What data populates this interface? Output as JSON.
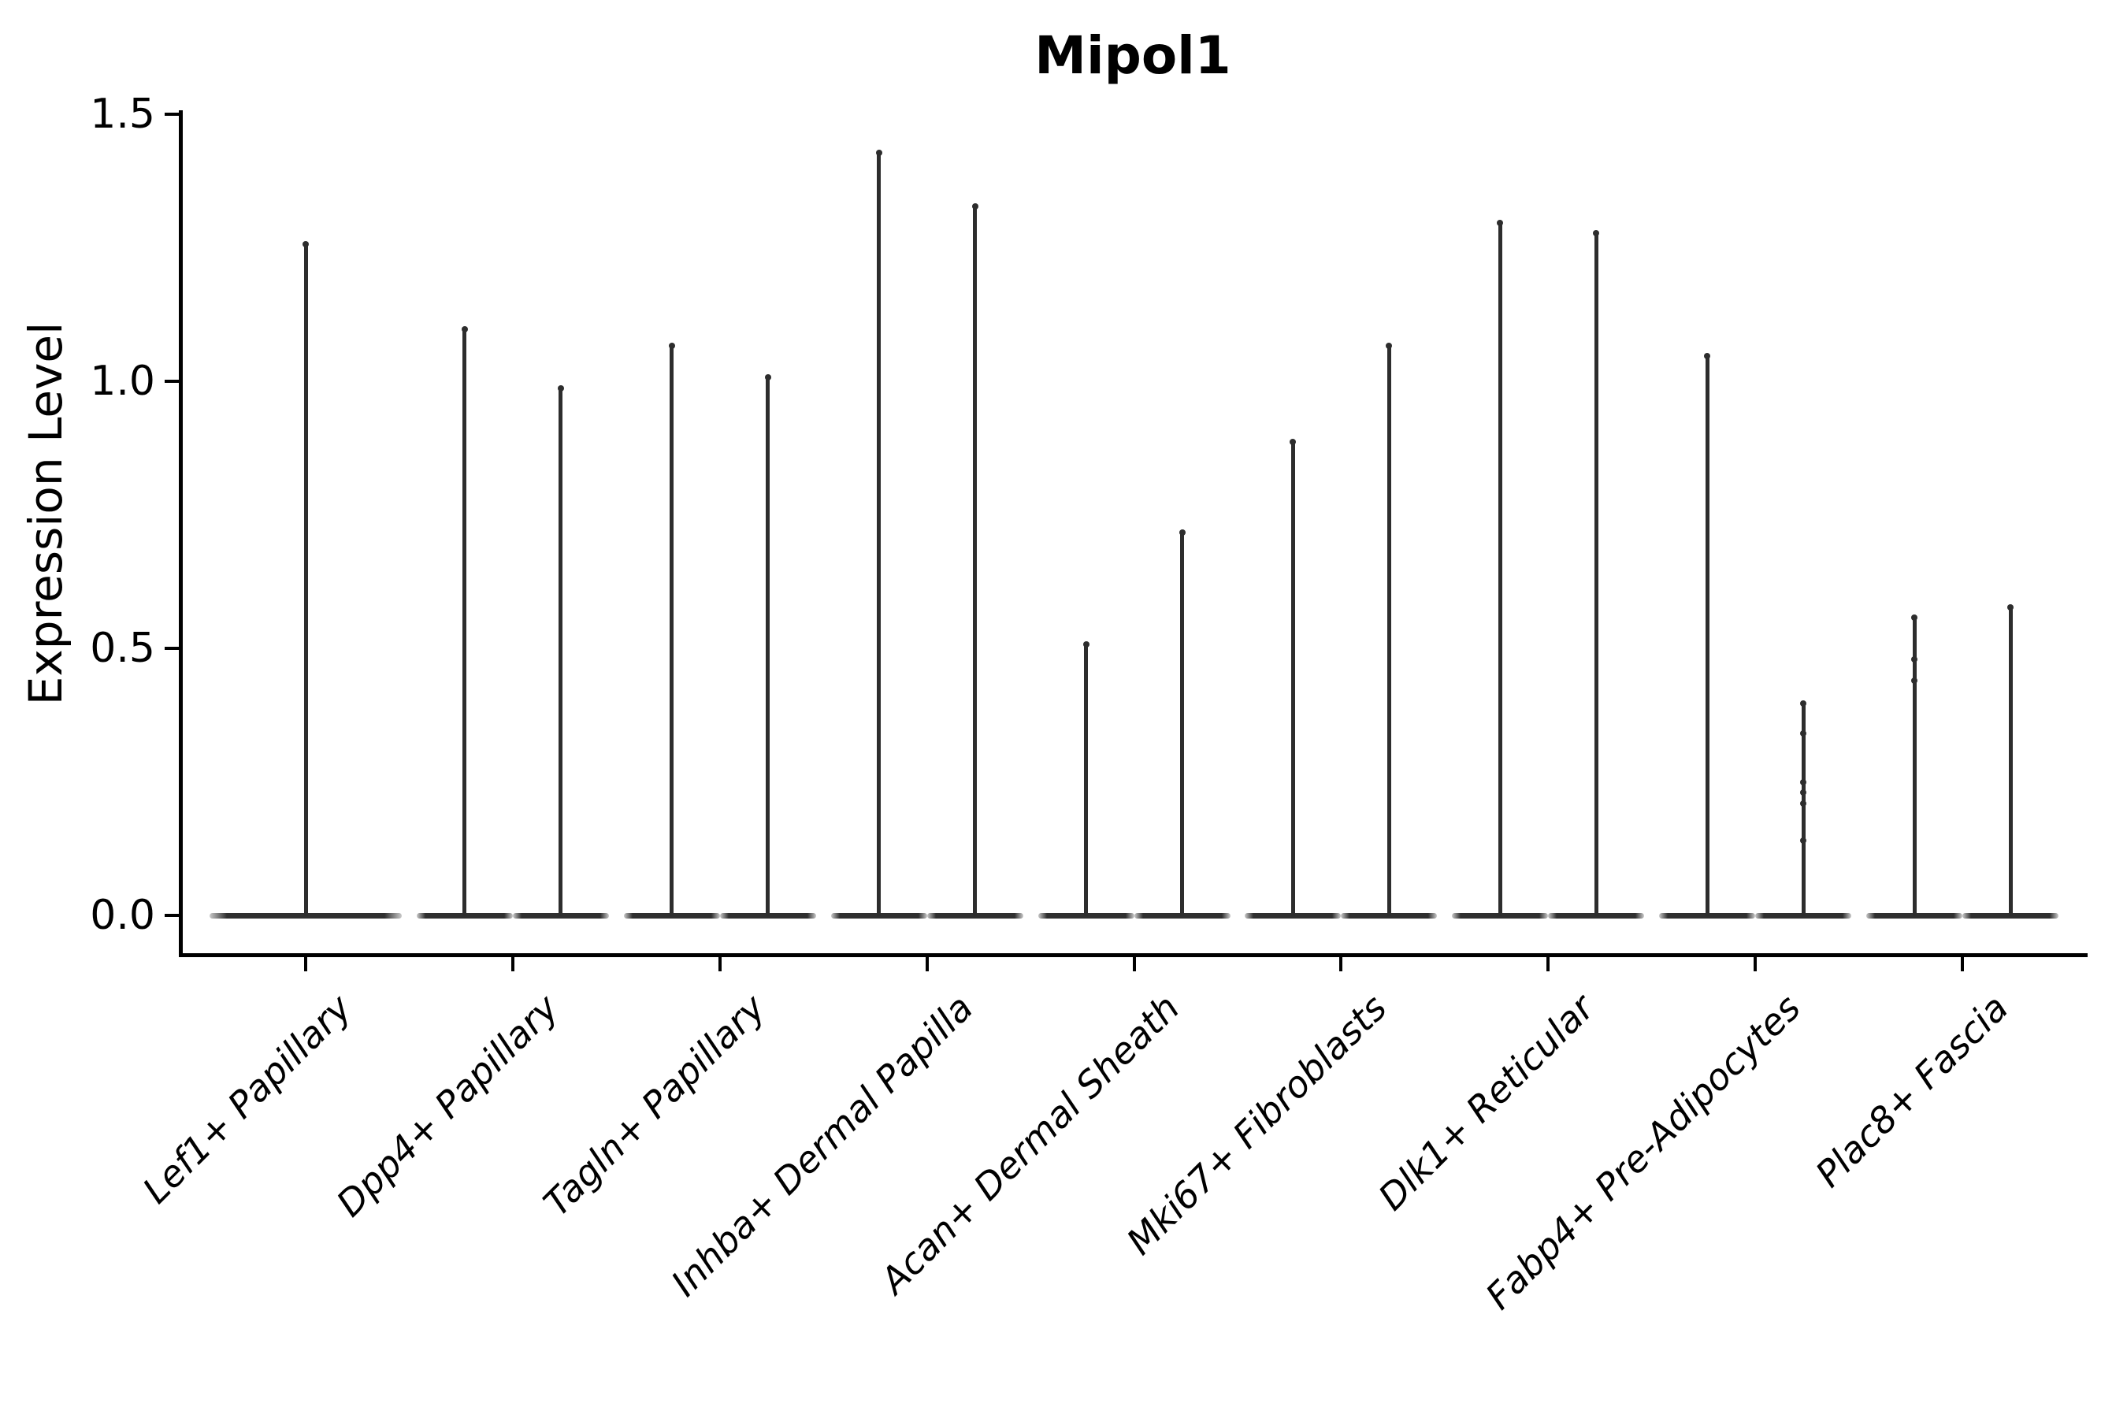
{
  "chart_data": {
    "type": "violin",
    "title": "Mipol1",
    "xlabel": "",
    "ylabel": "Expression Level",
    "ylim": [
      -0.07,
      1.51
    ],
    "yticks": [
      0,
      0.5,
      1,
      1.5
    ],
    "ytick_labels": [
      "0.0",
      "0.5",
      "1.0",
      "1.5"
    ],
    "grid": false,
    "legend": "none",
    "baseline_value": 0,
    "categories": [
      "Lef1+ Papillary",
      "Dpp4+ Papillary",
      "Tagln+ Papillary",
      "Inhba+ Dermal Papilla",
      "Acan+ Dermal Sheath",
      "Mki67+ Fibroblasts",
      "Dlk1+ Reticular",
      "Fabp4+ Pre-Adipocytes",
      "Plac8+ Fascia"
    ],
    "violins": [
      {
        "category": "Lef1+ Papillary",
        "group_maxima": [
          1.26
        ],
        "points": [
          []
        ]
      },
      {
        "category": "Dpp4+ Papillary",
        "group_maxima": [
          1.1,
          0.99
        ],
        "points": [
          [],
          []
        ]
      },
      {
        "category": "Tagln+ Papillary",
        "group_maxima": [
          1.07,
          1.01
        ],
        "points": [
          [],
          []
        ]
      },
      {
        "category": "Inhba+ Dermal Papilla",
        "group_maxima": [
          1.43,
          1.33
        ],
        "points": [
          [],
          []
        ]
      },
      {
        "category": "Acan+ Dermal Sheath",
        "group_maxima": [
          0.51,
          0.72
        ],
        "points": [
          [],
          []
        ]
      },
      {
        "category": "Mki67+ Fibroblasts",
        "group_maxima": [
          0.89,
          1.07
        ],
        "points": [
          [],
          []
        ]
      },
      {
        "category": "Dlk1+ Reticular",
        "group_maxima": [
          1.3,
          1.28
        ],
        "points": [
          [],
          []
        ]
      },
      {
        "category": "Fabp4+ Pre-Adipocytes",
        "group_maxima": [
          1.05,
          0.4
        ],
        "points": [
          [],
          [
            0.34,
            0.25,
            0.23,
            0.21,
            0.14
          ]
        ]
      },
      {
        "category": "Plac8+ Fascia",
        "group_maxima": [
          0.56,
          0.58
        ],
        "points": [
          [
            0.48,
            0.44
          ],
          []
        ]
      }
    ]
  },
  "style": {
    "violin_color": "#2d2d2d",
    "axis_color": "#000000",
    "background_color": "#ffffff"
  }
}
